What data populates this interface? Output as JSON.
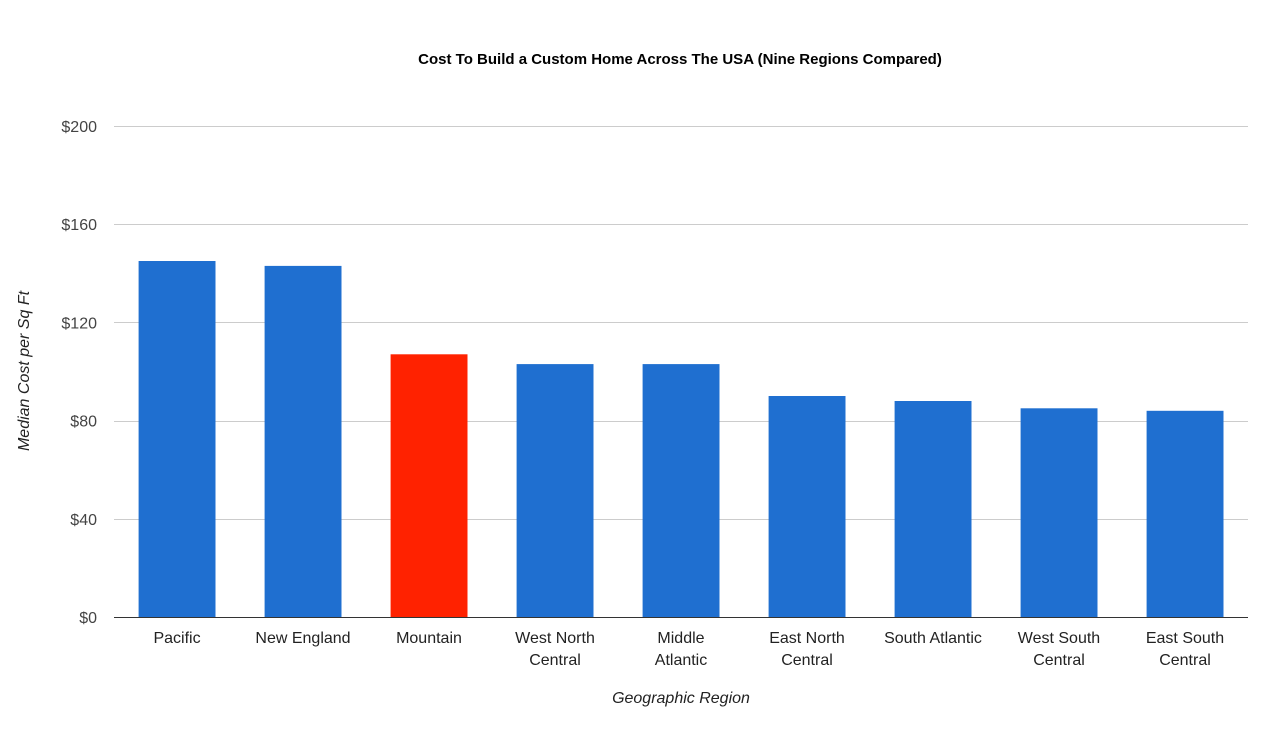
{
  "chart_data": {
    "type": "bar",
    "title": "Cost To Build a Custom Home Across The USA (Nine Regions Compared)",
    "xlabel": "Geographic Region",
    "ylabel": "Median Cost per Sq Ft",
    "ylim": [
      0,
      200
    ],
    "yticks": [
      0,
      40,
      80,
      120,
      160,
      200
    ],
    "ytick_labels": [
      "$0",
      "$40",
      "$80",
      "$120",
      "$160",
      "$200"
    ],
    "grid": true,
    "categories": [
      [
        "Pacific"
      ],
      [
        "New England"
      ],
      [
        "Mountain"
      ],
      [
        "West North",
        "Central"
      ],
      [
        "Middle",
        "Atlantic"
      ],
      [
        "East North",
        "Central"
      ],
      [
        "South Atlantic"
      ],
      [
        "West South",
        "Central"
      ],
      [
        "East South",
        "Central"
      ]
    ],
    "values": [
      145,
      143,
      107,
      103,
      103,
      90,
      88,
      85,
      84
    ],
    "colors": [
      "#1f6fd0",
      "#1f6fd0",
      "#ff2200",
      "#1f6fd0",
      "#1f6fd0",
      "#1f6fd0",
      "#1f6fd0",
      "#1f6fd0",
      "#1f6fd0"
    ],
    "highlight_color": "#ff2200",
    "bar_color": "#1f6fd0"
  }
}
